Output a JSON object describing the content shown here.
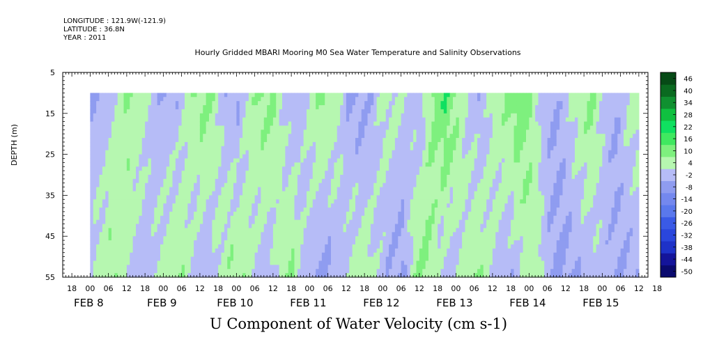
{
  "header": {
    "longitude": "LONGITUDE : 121.9W(-121.9)",
    "latitude": "LATITUDE : 36.8N",
    "year": "YEAR : 2011"
  },
  "chart_data": {
    "type": "heatmap",
    "title": "Hourly Gridded MBARI Mooring M0 Sea Water Temperature and Salinity Observations",
    "bottom_title": "U Component of Water Velocity (cm s-1)",
    "ylabel": "DEPTH (m)",
    "ylim": [
      55,
      5
    ],
    "data_depth_range": [
      10,
      55
    ],
    "xlim_hours": [
      -9,
      183
    ],
    "data_time_range_hours": [
      0,
      180
    ],
    "y_ticks": [
      5,
      15,
      25,
      35,
      45,
      55
    ],
    "y_tick_labels": [
      "5",
      "15",
      "25",
      "35",
      "45",
      "55"
    ],
    "x_tick_labels": [
      "18",
      "00",
      "06",
      "12",
      "18",
      "00",
      "06",
      "12",
      "18",
      "00",
      "06",
      "12",
      "18",
      "00",
      "06",
      "12",
      "18",
      "00",
      "06",
      "12",
      "18",
      "00",
      "06",
      "12",
      "18",
      "00",
      "06",
      "12",
      "18",
      "00",
      "06",
      "12",
      "18"
    ],
    "date_labels": [
      "FEB  8",
      "FEB  9",
      "FEB 10",
      "FEB 11",
      "FEB 12",
      "FEB 13",
      "FEB 14",
      "FEB 15"
    ],
    "colorbar": {
      "levels": [
        -50,
        -44,
        -38,
        -32,
        -26,
        -20,
        -14,
        -8,
        -2,
        4,
        10,
        16,
        22,
        28,
        34,
        40,
        46
      ],
      "labels": [
        "46",
        "40",
        "34",
        "28",
        "22",
        "16",
        "10",
        "4",
        "-2",
        "-8",
        "-14",
        "-20",
        "-26",
        "-32",
        "-38",
        "-44",
        "-50"
      ]
    },
    "colors": {
      "positive_light": "#b6f7b0",
      "positive_mid": "#7ef07e",
      "positive_strong": "#10e060",
      "negative_light": "#b6bcf7",
      "negative_mid": "#8f9cf0",
      "negative_strong": "#5a78ec"
    },
    "velocity_field": {
      "time_hours": [
        0,
        4,
        8,
        12,
        16,
        20,
        24,
        28,
        32,
        36,
        40,
        44,
        48,
        52,
        56,
        60,
        64,
        68,
        72,
        76,
        80,
        84,
        88,
        92,
        96,
        100,
        104,
        108,
        112,
        116,
        120,
        124,
        128,
        132,
        136,
        140,
        144,
        148,
        152,
        156,
        160,
        164,
        168,
        172,
        176,
        180
      ],
      "surface_u": [
        -8,
        -6,
        2,
        8,
        6,
        -4,
        -8,
        -6,
        4,
        10,
        6,
        -6,
        -8,
        4,
        10,
        8,
        -4,
        -6,
        4,
        10,
        6,
        -8,
        -10,
        -6,
        4,
        2,
        -4,
        -6,
        10,
        16,
        8,
        -4,
        -6,
        4,
        8,
        14,
        8,
        -4,
        -8,
        -2,
        6,
        10,
        -2,
        -8,
        2,
        6
      ],
      "deep_u": [
        -2,
        -6,
        4,
        8,
        4,
        -2,
        -6,
        2,
        8,
        6,
        -4,
        -8,
        2,
        8,
        6,
        -2,
        -6,
        4,
        8,
        -2,
        -8,
        -10,
        -4,
        4,
        6,
        -2,
        -8,
        -10,
        6,
        10,
        -2,
        -6,
        2,
        8,
        4,
        -4,
        -6,
        2,
        6,
        -6,
        -10,
        -8,
        -6,
        -4,
        -6,
        -8
      ]
    }
  }
}
